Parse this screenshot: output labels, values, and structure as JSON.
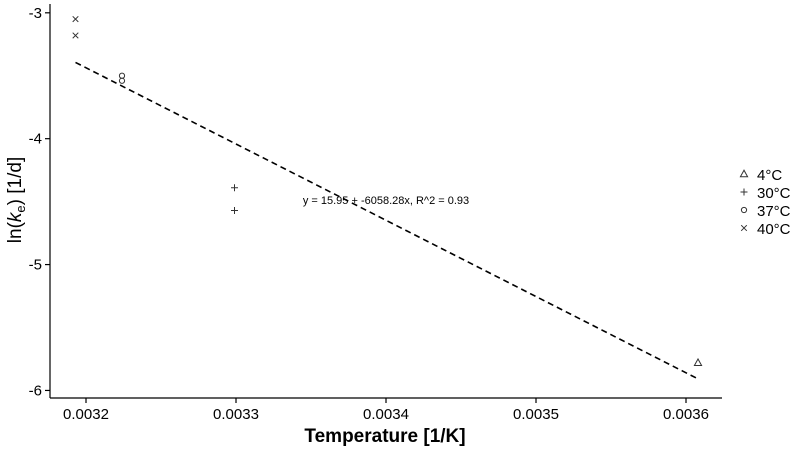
{
  "chart_data": {
    "type": "scatter",
    "xlabel": "Temperature [1/K]",
    "ylabel": {
      "prefix": "ln(",
      "var": "k",
      "sub": "e",
      "suffix": ") [1/d]"
    },
    "xlim": [
      0.003176,
      0.003624
    ],
    "ylim": [
      -6.06,
      -2.93
    ],
    "xticks": [
      {
        "value": 0.0032,
        "label": "0.0032"
      },
      {
        "value": 0.0033,
        "label": "0.0033"
      },
      {
        "value": 0.0034,
        "label": "0.0034"
      },
      {
        "value": 0.0035,
        "label": "0.0035"
      },
      {
        "value": 0.0036,
        "label": "0.0036"
      }
    ],
    "yticks": [
      {
        "value": -3,
        "label": "-3"
      },
      {
        "value": -4,
        "label": "-4"
      },
      {
        "value": -5,
        "label": "-5"
      },
      {
        "value": -6,
        "label": "-6"
      }
    ],
    "grid": false,
    "legend_position": "right",
    "series": [
      {
        "name": "4°C",
        "marker": "triangle",
        "points": [
          [
            0.003608,
            -5.78
          ]
        ]
      },
      {
        "name": "30°C",
        "marker": "plus",
        "points": [
          [
            0.003299,
            -4.39
          ],
          [
            0.003299,
            -4.57
          ]
        ]
      },
      {
        "name": "37°C",
        "marker": "circle",
        "points": [
          [
            0.003224,
            -3.5
          ],
          [
            0.003224,
            -3.54
          ]
        ]
      },
      {
        "name": "40°C",
        "marker": "cross",
        "points": [
          [
            0.003193,
            -3.05
          ],
          [
            0.003193,
            -3.18
          ]
        ]
      }
    ],
    "fit_line": {
      "intercept": 15.95,
      "slope": -6058.28,
      "x_range": [
        0.003193,
        0.003608
      ],
      "style": "dashed"
    },
    "annotation": {
      "text": "y = 15.95 + -6058.28x, R^2 = 0.93",
      "x": 0.0034,
      "y": -4.52
    },
    "colors": {
      "marker": "#333333",
      "axis": "#000000",
      "fit_line": "#000000"
    }
  }
}
